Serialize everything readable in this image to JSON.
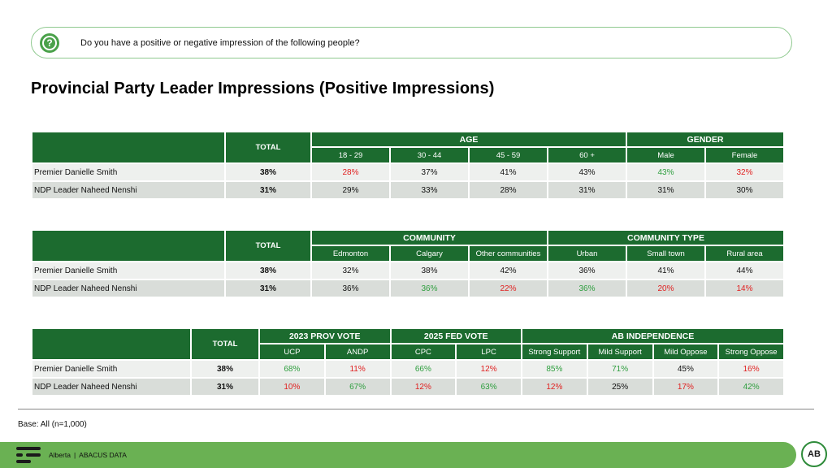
{
  "question": "Do you have a positive or negative impression of the following people?",
  "title": "Provincial Party Leader Impressions (Positive Impressions)",
  "colors": {
    "header_green": "#1c6b2f",
    "positive": "#2e9e3e",
    "negative": "#e02020",
    "footer_green": "#6ab153"
  },
  "total_label": "TOTAL",
  "tables": [
    {
      "groups": [
        {
          "label": "AGE",
          "columns": [
            "18 - 29",
            "30 - 44",
            "45 - 59",
            "60 +"
          ]
        },
        {
          "label": "GENDER",
          "columns": [
            "Male",
            "Female"
          ]
        }
      ],
      "rows": [
        {
          "label": "Premier Danielle Smith",
          "total": "38%",
          "values": [
            {
              "v": "28%",
              "c": "neg"
            },
            {
              "v": "37%",
              "c": ""
            },
            {
              "v": "41%",
              "c": ""
            },
            {
              "v": "43%",
              "c": ""
            },
            {
              "v": "43%",
              "c": "pos"
            },
            {
              "v": "32%",
              "c": "neg"
            }
          ]
        },
        {
          "label": "NDP Leader Naheed Nenshi",
          "total": "31%",
          "values": [
            {
              "v": "29%",
              "c": ""
            },
            {
              "v": "33%",
              "c": ""
            },
            {
              "v": "28%",
              "c": ""
            },
            {
              "v": "31%",
              "c": ""
            },
            {
              "v": "31%",
              "c": ""
            },
            {
              "v": "30%",
              "c": ""
            }
          ]
        }
      ]
    },
    {
      "groups": [
        {
          "label": "COMMUNITY",
          "columns": [
            "Edmonton",
            "Calgary",
            "Other communities"
          ]
        },
        {
          "label": "COMMUNITY TYPE",
          "columns": [
            "Urban",
            "Small town",
            "Rural area"
          ]
        }
      ],
      "rows": [
        {
          "label": "Premier Danielle Smith",
          "total": "38%",
          "values": [
            {
              "v": "32%",
              "c": ""
            },
            {
              "v": "38%",
              "c": ""
            },
            {
              "v": "42%",
              "c": ""
            },
            {
              "v": "36%",
              "c": ""
            },
            {
              "v": "41%",
              "c": ""
            },
            {
              "v": "44%",
              "c": ""
            }
          ]
        },
        {
          "label": "NDP Leader Naheed Nenshi",
          "total": "31%",
          "values": [
            {
              "v": "36%",
              "c": ""
            },
            {
              "v": "36%",
              "c": "pos"
            },
            {
              "v": "22%",
              "c": "neg"
            },
            {
              "v": "36%",
              "c": "pos"
            },
            {
              "v": "20%",
              "c": "neg"
            },
            {
              "v": "14%",
              "c": "neg"
            }
          ]
        }
      ]
    },
    {
      "groups": [
        {
          "label": "2023 PROV VOTE",
          "columns": [
            "UCP",
            "ANDP"
          ]
        },
        {
          "label": "2025 FED VOTE",
          "columns": [
            "CPC",
            "LPC"
          ]
        },
        {
          "label": "AB INDEPENDENCE",
          "columns": [
            "Strong Support",
            "Mild Support",
            "Mild Oppose",
            "Strong Oppose"
          ]
        }
      ],
      "rows": [
        {
          "label": "Premier Danielle Smith",
          "total": "38%",
          "values": [
            {
              "v": "68%",
              "c": "pos"
            },
            {
              "v": "11%",
              "c": "neg"
            },
            {
              "v": "66%",
              "c": "pos"
            },
            {
              "v": "12%",
              "c": "neg"
            },
            {
              "v": "85%",
              "c": "pos"
            },
            {
              "v": "71%",
              "c": "pos"
            },
            {
              "v": "45%",
              "c": ""
            },
            {
              "v": "16%",
              "c": "neg"
            }
          ]
        },
        {
          "label": "NDP Leader Naheed Nenshi",
          "total": "31%",
          "values": [
            {
              "v": "10%",
              "c": "neg"
            },
            {
              "v": "67%",
              "c": "pos"
            },
            {
              "v": "12%",
              "c": "neg"
            },
            {
              "v": "63%",
              "c": "pos"
            },
            {
              "v": "12%",
              "c": "neg"
            },
            {
              "v": "25%",
              "c": ""
            },
            {
              "v": "17%",
              "c": "neg"
            },
            {
              "v": "42%",
              "c": "pos"
            }
          ]
        }
      ]
    }
  ],
  "base_note": "Base: All (n=1,000)",
  "footer": {
    "region": "Alberta",
    "separator": "|",
    "brand": "ABACUS DATA",
    "logo_icon": "abacus-logo-icon"
  },
  "badge": "AB"
}
